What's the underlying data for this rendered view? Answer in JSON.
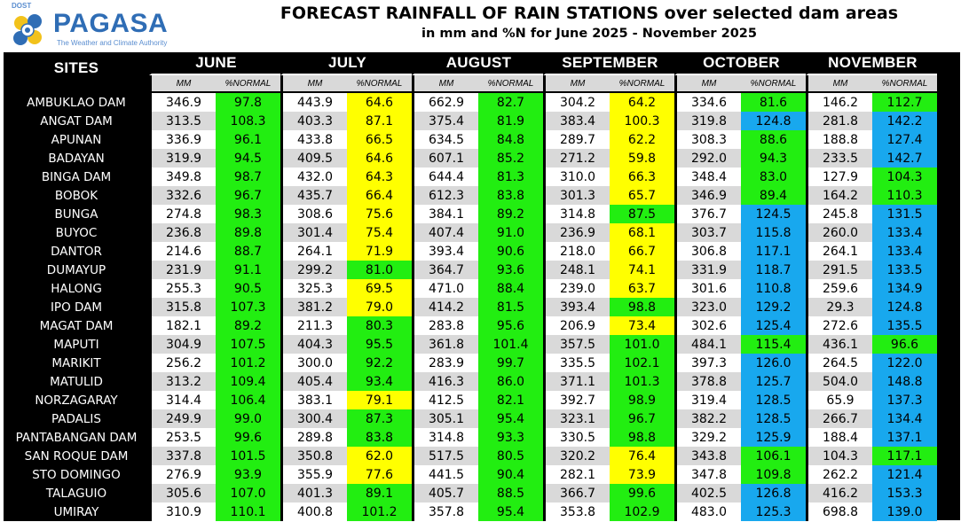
{
  "header": {
    "logo_dost": "DOST",
    "logo_name": "PAGASA",
    "logo_tagline": "The Weather and Climate Authority",
    "title": "FORECAST RAINFALL OF RAIN STATIONS over selected dam areas",
    "subtitle": "in mm and %N for June 2025 - November 2025"
  },
  "colors": {
    "green": "#22ee11",
    "yellow": "#ffff00",
    "blue": "#18a8ee",
    "header_bg": "#000000",
    "subheader_bg": "#d9d9d9"
  },
  "table": {
    "sites_label": "SITES",
    "months": [
      "JUNE",
      "JULY",
      "AUGUST",
      "SEPTEMBER",
      "OCTOBER",
      "NOVEMBER"
    ],
    "mm_label": "MM",
    "pct_label": "%NORMAL",
    "rows": [
      {
        "site": "AMBUKLAO DAM",
        "mm": [
          "346.9",
          "443.9",
          "662.9",
          "304.2",
          "334.6",
          "146.2"
        ],
        "pct": [
          "97.8",
          "64.6",
          "82.7",
          "64.2",
          "81.6",
          "112.7"
        ],
        "cls": [
          "green",
          "yellow",
          "green",
          "yellow",
          "green",
          "green"
        ]
      },
      {
        "site": "ANGAT DAM",
        "mm": [
          "313.5",
          "403.3",
          "375.4",
          "383.4",
          "319.8",
          "281.8"
        ],
        "pct": [
          "108.3",
          "87.1",
          "81.9",
          "100.3",
          "124.8",
          "142.2"
        ],
        "cls": [
          "green",
          "yellow",
          "green",
          "yellow",
          "blue",
          "blue"
        ]
      },
      {
        "site": "APUNAN",
        "mm": [
          "336.9",
          "433.8",
          "634.5",
          "289.7",
          "308.3",
          "188.8"
        ],
        "pct": [
          "96.1",
          "66.5",
          "84.8",
          "62.2",
          "88.6",
          "127.4"
        ],
        "cls": [
          "green",
          "yellow",
          "green",
          "yellow",
          "green",
          "blue"
        ]
      },
      {
        "site": "BADAYAN",
        "mm": [
          "319.9",
          "409.5",
          "607.1",
          "271.2",
          "292.0",
          "233.5"
        ],
        "pct": [
          "94.5",
          "64.6",
          "85.2",
          "59.8",
          "94.3",
          "142.7"
        ],
        "cls": [
          "green",
          "yellow",
          "green",
          "yellow",
          "green",
          "blue"
        ]
      },
      {
        "site": "BINGA DAM",
        "mm": [
          "349.8",
          "432.0",
          "644.4",
          "310.0",
          "348.4",
          "127.9"
        ],
        "pct": [
          "98.7",
          "64.3",
          "81.3",
          "66.3",
          "83.0",
          "104.3"
        ],
        "cls": [
          "green",
          "yellow",
          "green",
          "yellow",
          "green",
          "green"
        ]
      },
      {
        "site": "BOBOK",
        "mm": [
          "332.6",
          "435.7",
          "612.3",
          "301.3",
          "346.9",
          "164.2"
        ],
        "pct": [
          "96.7",
          "66.4",
          "83.8",
          "65.7",
          "89.4",
          "110.3"
        ],
        "cls": [
          "green",
          "yellow",
          "green",
          "yellow",
          "green",
          "green"
        ]
      },
      {
        "site": "BUNGA",
        "mm": [
          "274.8",
          "308.6",
          "384.1",
          "314.8",
          "376.7",
          "245.8"
        ],
        "pct": [
          "98.3",
          "75.6",
          "89.2",
          "87.5",
          "124.5",
          "131.5"
        ],
        "cls": [
          "green",
          "yellow",
          "green",
          "green",
          "blue",
          "blue"
        ]
      },
      {
        "site": "BUYOC",
        "mm": [
          "236.8",
          "301.4",
          "407.4",
          "236.9",
          "303.7",
          "260.0"
        ],
        "pct": [
          "89.8",
          "75.4",
          "91.0",
          "68.1",
          "115.8",
          "133.4"
        ],
        "cls": [
          "green",
          "yellow",
          "green",
          "yellow",
          "blue",
          "blue"
        ]
      },
      {
        "site": "DANTOR",
        "mm": [
          "214.6",
          "264.1",
          "393.4",
          "218.0",
          "306.8",
          "264.1"
        ],
        "pct": [
          "88.7",
          "71.9",
          "90.6",
          "66.7",
          "117.1",
          "133.4"
        ],
        "cls": [
          "green",
          "yellow",
          "green",
          "yellow",
          "blue",
          "blue"
        ]
      },
      {
        "site": "DUMAYUP",
        "mm": [
          "231.9",
          "299.2",
          "364.7",
          "248.1",
          "331.9",
          "291.5"
        ],
        "pct": [
          "91.1",
          "81.0",
          "93.6",
          "74.1",
          "118.7",
          "133.5"
        ],
        "cls": [
          "green",
          "green",
          "green",
          "yellow",
          "blue",
          "blue"
        ]
      },
      {
        "site": "HALONG",
        "mm": [
          "255.3",
          "325.3",
          "471.0",
          "239.0",
          "301.6",
          "259.6"
        ],
        "pct": [
          "90.5",
          "69.5",
          "88.4",
          "63.7",
          "110.8",
          "134.9"
        ],
        "cls": [
          "green",
          "yellow",
          "green",
          "yellow",
          "blue",
          "blue"
        ]
      },
      {
        "site": "IPO DAM",
        "mm": [
          "315.8",
          "381.2",
          "414.2",
          "393.4",
          "323.0",
          "29.3"
        ],
        "pct": [
          "107.3",
          "79.0",
          "81.5",
          "98.8",
          "129.2",
          "124.8"
        ],
        "cls": [
          "green",
          "yellow",
          "green",
          "green",
          "blue",
          "blue"
        ]
      },
      {
        "site": "MAGAT DAM",
        "mm": [
          "182.1",
          "211.3",
          "283.8",
          "206.9",
          "302.6",
          "272.6"
        ],
        "pct": [
          "89.2",
          "80.3",
          "95.6",
          "73.4",
          "125.4",
          "135.5"
        ],
        "cls": [
          "green",
          "green",
          "green",
          "yellow",
          "blue",
          "blue"
        ]
      },
      {
        "site": "MAPUTI",
        "mm": [
          "304.9",
          "404.3",
          "361.8",
          "357.5",
          "484.1",
          "436.1"
        ],
        "pct": [
          "107.5",
          "95.5",
          "101.4",
          "101.0",
          "115.4",
          "96.6"
        ],
        "cls": [
          "green",
          "green",
          "green",
          "green",
          "green",
          "green"
        ]
      },
      {
        "site": "MARIKIT",
        "mm": [
          "256.2",
          "300.0",
          "283.9",
          "335.5",
          "397.3",
          "264.5"
        ],
        "pct": [
          "101.2",
          "92.2",
          "99.7",
          "102.1",
          "126.0",
          "122.0"
        ],
        "cls": [
          "green",
          "green",
          "green",
          "green",
          "blue",
          "blue"
        ]
      },
      {
        "site": "MATULID",
        "mm": [
          "313.2",
          "405.4",
          "416.3",
          "371.1",
          "378.8",
          "504.0"
        ],
        "pct": [
          "109.4",
          "93.4",
          "86.0",
          "101.3",
          "125.7",
          "148.8"
        ],
        "cls": [
          "green",
          "green",
          "green",
          "green",
          "blue",
          "blue"
        ]
      },
      {
        "site": "NORZAGARAY",
        "mm": [
          "314.4",
          "383.1",
          "412.5",
          "392.7",
          "319.4",
          "65.9"
        ],
        "pct": [
          "106.4",
          "79.1",
          "82.1",
          "98.9",
          "128.5",
          "137.3"
        ],
        "cls": [
          "green",
          "yellow",
          "green",
          "green",
          "blue",
          "blue"
        ]
      },
      {
        "site": "PADALIS",
        "mm": [
          "249.9",
          "300.4",
          "305.1",
          "323.1",
          "382.2",
          "266.7"
        ],
        "pct": [
          "99.0",
          "87.3",
          "95.4",
          "96.7",
          "128.5",
          "134.4"
        ],
        "cls": [
          "green",
          "green",
          "green",
          "green",
          "blue",
          "blue"
        ]
      },
      {
        "site": "PANTABANGAN DAM",
        "mm": [
          "253.5",
          "289.8",
          "314.8",
          "330.5",
          "329.2",
          "188.4"
        ],
        "pct": [
          "99.6",
          "83.8",
          "93.3",
          "98.8",
          "125.9",
          "137.1"
        ],
        "cls": [
          "green",
          "green",
          "green",
          "green",
          "blue",
          "blue"
        ]
      },
      {
        "site": "SAN ROQUE DAM",
        "mm": [
          "337.8",
          "350.8",
          "517.5",
          "320.2",
          "343.8",
          "104.3"
        ],
        "pct": [
          "101.5",
          "62.0",
          "80.5",
          "76.4",
          "106.1",
          "117.1"
        ],
        "cls": [
          "green",
          "yellow",
          "green",
          "yellow",
          "green",
          "green"
        ]
      },
      {
        "site": "STO DOMINGO",
        "mm": [
          "276.9",
          "355.9",
          "441.5",
          "282.1",
          "347.8",
          "262.2"
        ],
        "pct": [
          "93.9",
          "77.6",
          "90.4",
          "73.9",
          "109.8",
          "121.4"
        ],
        "cls": [
          "green",
          "yellow",
          "green",
          "yellow",
          "green",
          "blue"
        ]
      },
      {
        "site": "TALAGUIO",
        "mm": [
          "305.6",
          "401.3",
          "405.7",
          "366.7",
          "402.5",
          "416.2"
        ],
        "pct": [
          "107.0",
          "89.1",
          "88.5",
          "99.6",
          "126.8",
          "153.3"
        ],
        "cls": [
          "green",
          "green",
          "green",
          "green",
          "blue",
          "blue"
        ]
      },
      {
        "site": "UMIRAY",
        "mm": [
          "310.9",
          "400.8",
          "357.8",
          "353.8",
          "483.0",
          "698.8"
        ],
        "pct": [
          "110.1",
          "101.2",
          "95.4",
          "102.9",
          "125.3",
          "139.0"
        ],
        "cls": [
          "green",
          "green",
          "green",
          "green",
          "blue",
          "blue"
        ]
      }
    ]
  }
}
